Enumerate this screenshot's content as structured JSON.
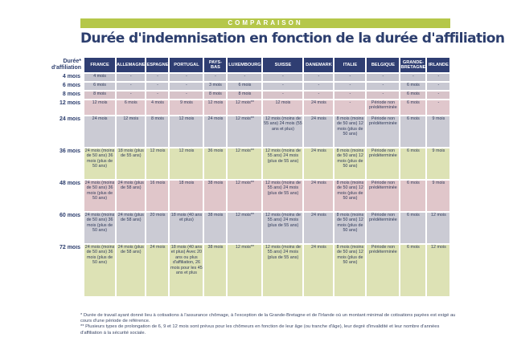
{
  "banner": "COMPARAISON",
  "title": "Durée d'indemnisation en fonction de la durée d'affiliation",
  "table": {
    "corner": "Durée* d'affiliation",
    "columns": [
      "FRANCE",
      "ALLEMAGNE",
      "ESPAGNE",
      "PORTUGAL",
      "PAYS-BAS",
      "LUXEMBOURG",
      "SUISSE",
      "DANEMARK",
      "ITALIE",
      "BELGIQUE",
      "GRANDE-BRETAGNE",
      "IRLANDE"
    ],
    "rows": [
      {
        "label": "4 mois",
        "cells": [
          "4 mois",
          "-",
          "-",
          "-",
          "-",
          "-",
          "-",
          "-",
          "-",
          "-",
          "-",
          "-"
        ]
      },
      {
        "label": "6 mois",
        "cells": [
          "6 mois",
          "-",
          "-",
          "-",
          "3 mois",
          "6 mois",
          "-",
          "-",
          "-",
          "-",
          "6 mois",
          "-"
        ]
      },
      {
        "label": "8 mois",
        "cells": [
          "8 mois",
          "-",
          "-",
          "-",
          "8 mois",
          "8 mois",
          "-",
          "-",
          "-",
          "-",
          "6 mois",
          "-"
        ]
      },
      {
        "label": "12 mois",
        "cells": [
          "12 mois",
          "6 mois",
          "4 mois",
          "9 mois",
          "12 mois",
          "12 mois**",
          "12 mois",
          "24 mois",
          "-",
          "Période non prédéterminée",
          "6 mois",
          "-"
        ]
      },
      {
        "label": "24 mois",
        "cells": [
          "24 mois",
          "12 mois",
          "8 mois",
          "12 mois",
          "24 mois",
          "12 mois**",
          "12 mois (moins de 55 ans) 24 mois (55 ans et plus)",
          "24 mois",
          "8 mois (moins de 50 ans) 12 mois (plus de 50 ans)",
          "Période non prédéterminée",
          "6 mois",
          "9 mois"
        ]
      },
      {
        "label": "36 mois",
        "cells": [
          "24 mois (moins de 50 ans) 36 mois (plus de 50 ans)",
          "18 mois (plus de 55 ans)",
          "12 mois",
          "12 mois",
          "36 mois",
          "12 mois**",
          "12 mois (moins de 55 ans) 24 mois (plus de 55 ans)",
          "24 mois",
          "8 mois (moins de 50 ans) 12 mois (plus de 50 ans)",
          "Période non prédéterminée",
          "6 mois",
          "9 mois"
        ]
      },
      {
        "label": "48 mois",
        "cells": [
          "24 mois (moins de 50 ans) 36 mois (plus de 50 ans)",
          "24 mois (plus de 58 ans)",
          "16 mois",
          "18 mois",
          "38 mois",
          "12 mois**",
          "12 mois (moins de 55 ans) 24 mois (plus de 55 ans)",
          "24 mois",
          "8 mois (moins de 50 ans) 12 mois (plus de 50 ans)",
          "Période non prédéterminée",
          "6 mois",
          "9 mois"
        ]
      },
      {
        "label": "60 mois",
        "cells": [
          "24 mois (moins de 50 ans) 36 mois (plus de 50 ans)",
          "24 mois (plus de 58 ans)",
          "20 mois",
          "18 mois (40 ans et plus)",
          "38 mois",
          "12 mois**",
          "12 mois (moins de 55 ans) 24 mois (plus de 55 ans)",
          "24 mois",
          "8 mois (moins de 50 ans) 12 mois (plus de 50 ans)",
          "Période non prédéterminée",
          "6 mois",
          "12 mois"
        ]
      },
      {
        "label": "72 mois",
        "cells": [
          "24 mois (moins de 50 ans) 36 mois (plus de 50 ans)",
          "24 mois (plus de 58 ans)",
          "24 mois",
          "18 mois (40 ans et plus) Avec 20 ans ou plus d'affiliation, 26 mois pour les 45 ans et plus",
          "38 mois",
          "12 mois**",
          "12 mois (moins de 55 ans) 24 mois (plus de 55 ans)",
          "24 mois",
          "8 mois (moins de 50 ans) 12 mois (plus de 50 ans)",
          "Période non prédéterminée",
          "6 mois",
          "12 mois"
        ]
      }
    ]
  },
  "footnotes": [
    "* Durée de travail ayant donné lieu à cotisations à l'assurance chômage, à l'exception de la Grande-Bretagne et de l'Irlande où un montant minimal de cotisations payées est exigé au cours d'une période de référence.",
    "** Plusieurs types de prolongation de 6, 9 et 12 mois sont prévus pour les chômeurs en fonction de leur âge (ou tranche d'âge), leur degré d'invalidité et leur nombre d'années d'affiliation à la sécurité sociale."
  ]
}
